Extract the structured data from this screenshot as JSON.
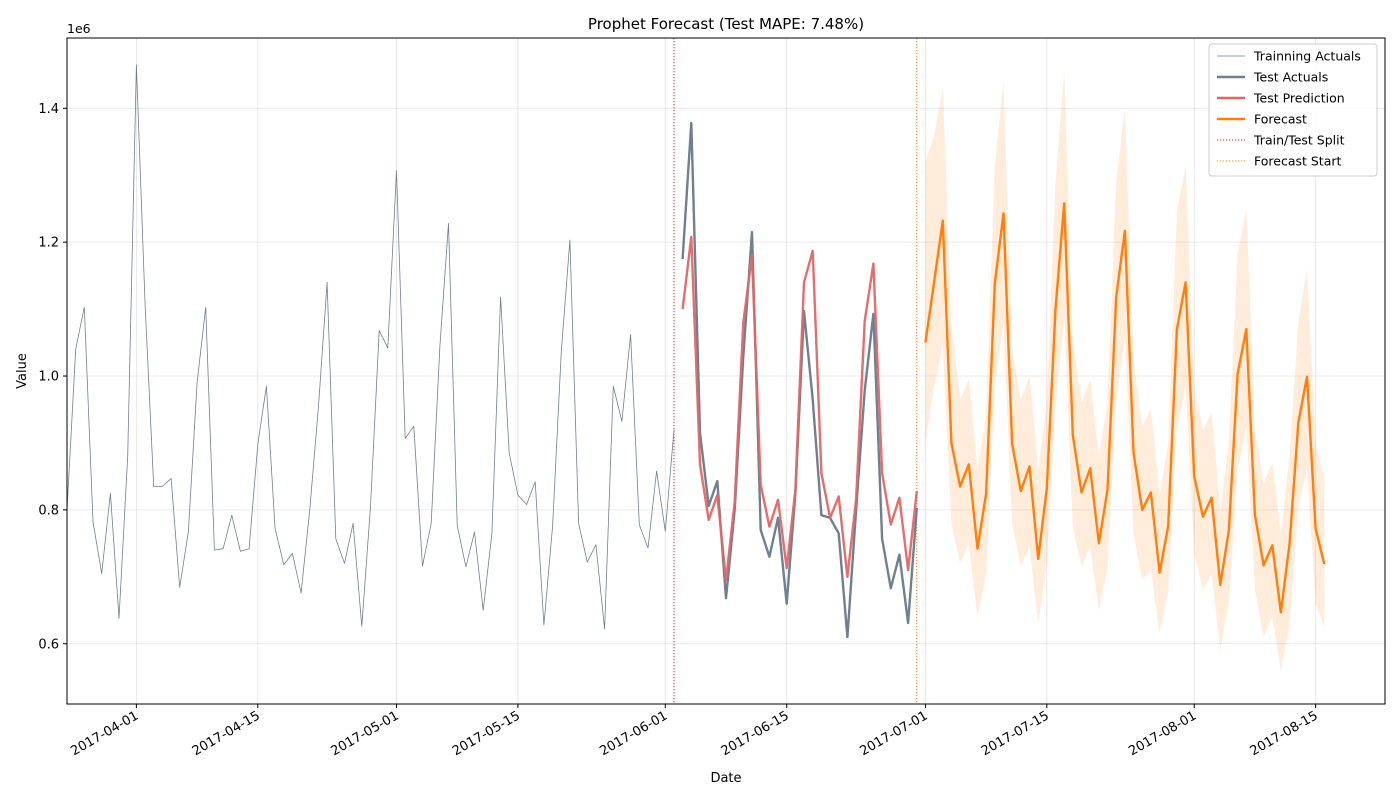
{
  "chart_data": {
    "type": "line",
    "title": "Prophet Forecast (Test MAPE: 7.48%)",
    "xlabel": "Date",
    "ylabel": "Value",
    "y_offset_label": "1e6",
    "xlim": [
      "2017-03-24",
      "2017-08-23"
    ],
    "ylim": [
      510000,
      1505000
    ],
    "x_ticks": [
      "2017-04-01",
      "2017-04-15",
      "2017-05-01",
      "2017-05-15",
      "2017-06-01",
      "2017-06-15",
      "2017-07-01",
      "2017-07-15",
      "2017-08-01",
      "2017-08-15"
    ],
    "y_ticks": [
      0.6,
      0.8,
      1.0,
      1.2,
      1.4
    ],
    "grid": true,
    "legend_position": "top-right",
    "split_lines": [
      {
        "label": "Train/Test Split",
        "date": "2017-06-02",
        "color": "#d62728"
      },
      {
        "label": "Forecast Start",
        "date": "2017-06-30",
        "color": "#ff7f0e"
      }
    ],
    "series": [
      {
        "name": "Trainning Actuals",
        "color": "#708090",
        "start": "2017-03-24",
        "values": [
          800000,
          1040000,
          1103000,
          782000,
          705000,
          825000,
          638000,
          880000,
          1465000,
          1110000,
          835000,
          835000,
          847000,
          684000,
          768000,
          990000,
          1103000,
          740000,
          742000,
          792000,
          738000,
          742000,
          898000,
          985000,
          772000,
          718000,
          735000,
          676000,
          801000,
          955000,
          1140000,
          757000,
          720000,
          780000,
          626000,
          805000,
          1068000,
          1042000,
          1307000,
          907000,
          925000,
          716000,
          780000,
          1045000,
          1228000,
          777000,
          715000,
          767000,
          650000,
          765000,
          1118000,
          885000,
          822000,
          808000,
          842000,
          628000,
          776000,
          1037000,
          1203000,
          780000,
          722000,
          748000,
          622000,
          985000,
          932000,
          1062000,
          778000,
          743000,
          858000,
          768000,
          920000
        ]
      },
      {
        "name": "Test Actuals",
        "color": "#708090",
        "start": "2017-06-03",
        "values": [
          1175000,
          1378000,
          915000,
          806000,
          843000,
          668000,
          800000,
          1030000,
          1215000,
          770000,
          730000,
          788000,
          660000,
          825000,
          1097000,
          965000,
          792000,
          788000,
          765000,
          610000,
          800000,
          978000,
          1093000,
          757000,
          683000,
          733000,
          631000,
          803000
        ]
      },
      {
        "name": "Test Prediction",
        "color": "#e06666",
        "start": "2017-06-03",
        "values": [
          1100000,
          1208000,
          868000,
          785000,
          822000,
          695000,
          812000,
          1080000,
          1180000,
          838000,
          775000,
          815000,
          713000,
          830000,
          1140000,
          1187000,
          855000,
          788000,
          820000,
          700000,
          815000,
          1082000,
          1168000,
          855000,
          778000,
          818000,
          710000,
          828000
        ]
      },
      {
        "name": "Forecast",
        "color": "#ff7f0e",
        "start": "2017-07-01",
        "values": [
          1050000,
          1140000,
          1232000,
          900000,
          835000,
          868000,
          742000,
          824000,
          1138000,
          1243000,
          899000,
          828000,
          865000,
          727000,
          832000,
          1100000,
          1258000,
          912000,
          826000,
          862000,
          750000,
          830000,
          1118000,
          1217000,
          886000,
          800000,
          826000,
          706000,
          776000,
          1070000,
          1140000,
          850000,
          790000,
          818000,
          688000,
          770000,
          1003000,
          1070000,
          793000,
          717000,
          747000,
          647000,
          750000,
          930000,
          999000,
          772000,
          719000
        ]
      }
    ],
    "forecast_interval": {
      "name": "Forecast interval",
      "color": "#ff7f0e",
      "upper": [
        1320000,
        1360000,
        1430000,
        1080000,
        965000,
        995000,
        860000,
        940000,
        1315000,
        1440000,
        1040000,
        965000,
        1000000,
        860000,
        960000,
        1290000,
        1455000,
        1050000,
        960000,
        995000,
        880000,
        960000,
        1290000,
        1400000,
        1025000,
        925000,
        950000,
        820000,
        900000,
        1245000,
        1315000,
        985000,
        920000,
        945000,
        800000,
        900000,
        1180000,
        1250000,
        920000,
        840000,
        870000,
        765000,
        880000,
        1080000,
        1160000,
        900000,
        845000
      ],
      "lower": [
        900000,
        985000,
        1045000,
        780000,
        720000,
        750000,
        640000,
        705000,
        980000,
        1080000,
        780000,
        715000,
        745000,
        630000,
        718000,
        950000,
        1090000,
        775000,
        715000,
        745000,
        650000,
        715000,
        960000,
        1060000,
        765000,
        695000,
        710000,
        615000,
        680000,
        920000,
        985000,
        735000,
        680000,
        705000,
        590000,
        665000,
        860000,
        925000,
        680000,
        610000,
        640000,
        560000,
        630000,
        805000,
        860000,
        660000,
        625000
      ]
    }
  }
}
